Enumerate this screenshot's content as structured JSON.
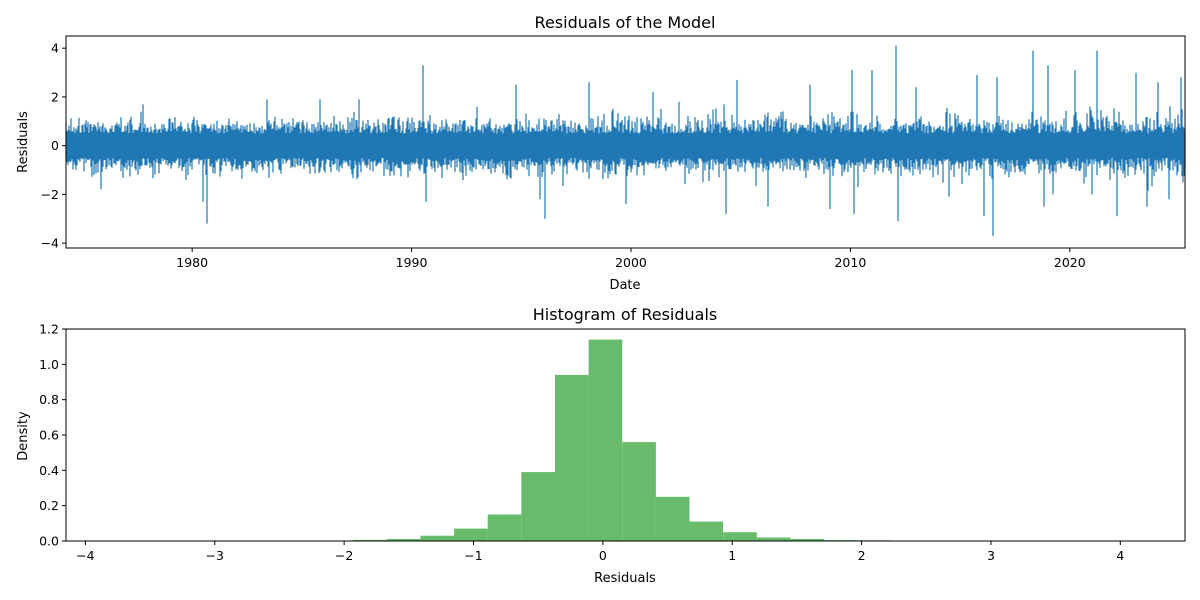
{
  "chart_data": [
    {
      "type": "line",
      "title": "Residuals of the Model",
      "xlabel": "Date",
      "ylabel": "Residuals",
      "x_range": [
        "1974-04",
        "2025-04"
      ],
      "ylim": [
        -4.2,
        4.5
      ],
      "x_ticks": [
        "1980",
        "1990",
        "2000",
        "2010",
        "2020"
      ],
      "y_ticks": [
        "−4",
        "−2",
        "0",
        "2",
        "4"
      ],
      "color": "#1f77b4",
      "series": [
        {
          "x": [
            "1974-04",
            "1975-11",
            "1977-10",
            "1980-07",
            "1980-09",
            "1983-06",
            "1985-11",
            "1987-08",
            "1990-07",
            "1990-09",
            "1993-01",
            "1994-10",
            "1995-11",
            "1996-02",
            "1998-02",
            "1999-10",
            "2001-01",
            "2002-03",
            "2004-05",
            "2004-11",
            "2006-04",
            "2008-03",
            "2009-02",
            "2010-02",
            "2010-03",
            "2011-01",
            "2012-02",
            "2012-03",
            "2013-01",
            "2014-07",
            "2015-10",
            "2016-02",
            "2016-07",
            "2016-09",
            "2018-05",
            "2018-11",
            "2019-01",
            "2019-04",
            "2020-04",
            "2021-01",
            "2021-04",
            "2022-03",
            "2023-01",
            "2023-07",
            "2024-01",
            "2024-07",
            "2025-02",
            "2025-03"
          ],
          "y": [
            -0.5,
            -1.8,
            1.7,
            -2.3,
            -3.2,
            1.9,
            1.9,
            1.9,
            3.3,
            -2.3,
            1.6,
            2.5,
            -2.2,
            -3.0,
            2.6,
            -2.4,
            2.2,
            1.8,
            -2.8,
            2.7,
            -2.5,
            2.5,
            -2.6,
            3.1,
            -2.8,
            3.1,
            4.1,
            -3.1,
            2.4,
            -2.1,
            2.9,
            -2.9,
            -3.7,
            2.8,
            3.9,
            -2.5,
            3.3,
            -2.0,
            3.1,
            -2.0,
            3.9,
            -2.9,
            3.0,
            -2.5,
            2.6,
            -2.2,
            2.8,
            -1.5
          ]
        }
      ]
    },
    {
      "type": "bar",
      "title": "Histogram of Residuals",
      "xlabel": "Residuals",
      "ylabel": "Density",
      "xlim": [
        -4.15,
        4.5
      ],
      "ylim": [
        0,
        1.2
      ],
      "x_ticks": [
        "−4",
        "−3",
        "−2",
        "−1",
        "0",
        "1",
        "2",
        "3",
        "4"
      ],
      "y_ticks": [
        "0.0",
        "0.2",
        "0.4",
        "0.6",
        "0.8",
        "1.0",
        "1.2"
      ],
      "color": "#4caf50",
      "bins": [
        {
          "x0": -2.45,
          "x1": -2.19,
          "value": 0.003
        },
        {
          "x0": -2.19,
          "x1": -1.93,
          "value": 0.003
        },
        {
          "x0": -1.93,
          "x1": -1.67,
          "value": 0.006
        },
        {
          "x0": -1.67,
          "x1": -1.41,
          "value": 0.012
        },
        {
          "x0": -1.41,
          "x1": -1.15,
          "value": 0.03
        },
        {
          "x0": -1.15,
          "x1": -0.89,
          "value": 0.07
        },
        {
          "x0": -0.89,
          "x1": -0.63,
          "value": 0.15
        },
        {
          "x0": -0.63,
          "x1": -0.37,
          "value": 0.39
        },
        {
          "x0": -0.37,
          "x1": -0.11,
          "value": 0.94
        },
        {
          "x0": -0.11,
          "x1": 0.15,
          "value": 1.14
        },
        {
          "x0": 0.15,
          "x1": 0.41,
          "value": 0.56
        },
        {
          "x0": 0.41,
          "x1": 0.67,
          "value": 0.25
        },
        {
          "x0": 0.67,
          "x1": 0.93,
          "value": 0.11
        },
        {
          "x0": 0.93,
          "x1": 1.19,
          "value": 0.05
        },
        {
          "x0": 1.19,
          "x1": 1.45,
          "value": 0.02
        },
        {
          "x0": 1.45,
          "x1": 1.71,
          "value": 0.012
        },
        {
          "x0": 1.71,
          "x1": 1.97,
          "value": 0.005
        },
        {
          "x0": 1.97,
          "x1": 2.23,
          "value": 0.004
        },
        {
          "x0": 2.23,
          "x1": 2.49,
          "value": 0.003
        },
        {
          "x0": 2.49,
          "x1": 2.75,
          "value": 0.003
        },
        {
          "x0": 2.75,
          "x1": 3.07,
          "value": 0.003
        }
      ]
    }
  ]
}
